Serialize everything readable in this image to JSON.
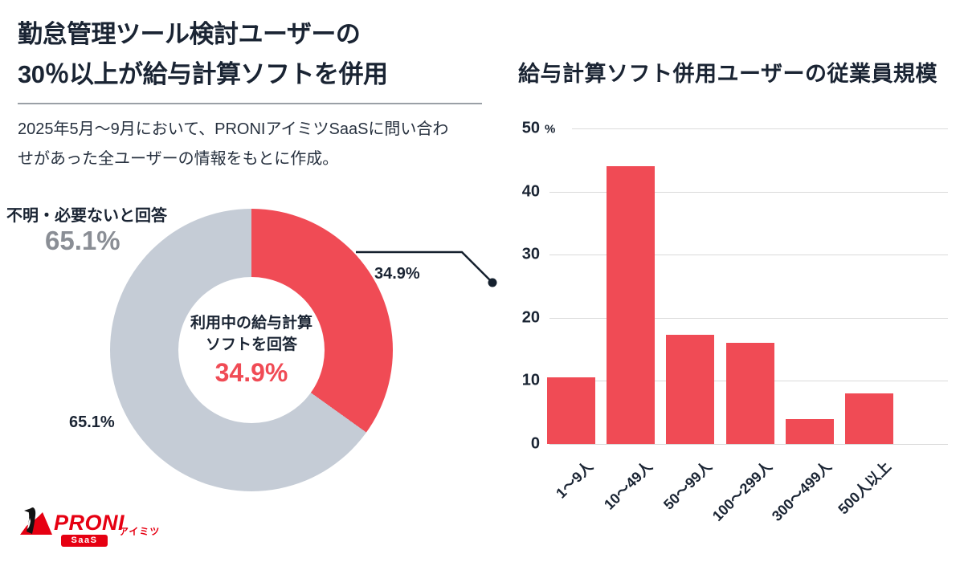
{
  "page": {
    "title_line1": "勤怠管理ツール検討ユーザーの",
    "title_line2": "30％以上が給与計算ソフトを併用",
    "description_line1": "2025年5月〜9月において、PRONIアイミツSaaSに問い合わ",
    "description_line2": "せがあった全ユーザーの情報をもとに作成。"
  },
  "colors": {
    "chart_red": "#f04b55",
    "slice_gray": "#c5ccd6",
    "dark_navy": "#1a2433",
    "gray_value_label": "#8a8e95",
    "gridline": "#dadada",
    "logo_red": "#e60012"
  },
  "chart_data": [
    {
      "type": "pie",
      "donut": true,
      "slices": [
        {
          "label": "利用中の給与計算ソフトを回答",
          "value": 34.9,
          "color": "#f04b55"
        },
        {
          "label": "不明・必要ないと回答",
          "value": 65.1,
          "color": "#c5ccd6"
        }
      ],
      "start_angle_deg": 0,
      "labels": {
        "outside_left_title": "不明・必要ないと回答",
        "outside_left_value": "65.1%",
        "inside_left_value": "65.1%",
        "right_value": "34.9%",
        "center_line1": "利用中の給与計算",
        "center_line2": "ソフトを回答",
        "center_value": "34.9%"
      }
    },
    {
      "type": "bar",
      "title": "給与計算ソフト併用ユーザーの従業員規模",
      "categories": [
        "1〜9人",
        "10〜49人",
        "50〜99人",
        "100〜299人",
        "300〜499人",
        "500人以上"
      ],
      "values": [
        10.5,
        44,
        17.3,
        16,
        4,
        8
      ],
      "xlabel": "",
      "ylabel": "%",
      "ylim": [
        0,
        50
      ],
      "yticks": [
        0,
        10,
        20,
        30,
        40,
        50
      ],
      "grid": true,
      "legend": false
    }
  ],
  "logo": {
    "brand": "PRONI",
    "sub": "アイミツ",
    "badge": "SaaS"
  }
}
